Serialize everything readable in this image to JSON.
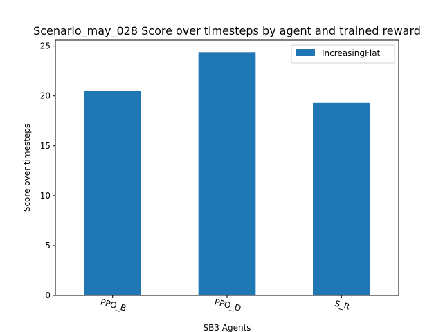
{
  "chart_data": {
    "type": "bar",
    "title": "Scenario_may_028 Score over timesteps by agent and trained reward",
    "xlabel": "SB3 Agents",
    "ylabel": "Score over timesteps",
    "categories": [
      "PPO_B",
      "PPO_D",
      "S_R"
    ],
    "series": [
      {
        "name": "IncreasingFlat",
        "values": [
          20.5,
          24.4,
          19.3
        ],
        "color": "#1f77b4"
      }
    ],
    "ylim": [
      0,
      25.6
    ],
    "yticks": [
      0,
      5,
      10,
      15,
      20,
      25
    ],
    "grid": false,
    "legend_position": "top-right"
  }
}
